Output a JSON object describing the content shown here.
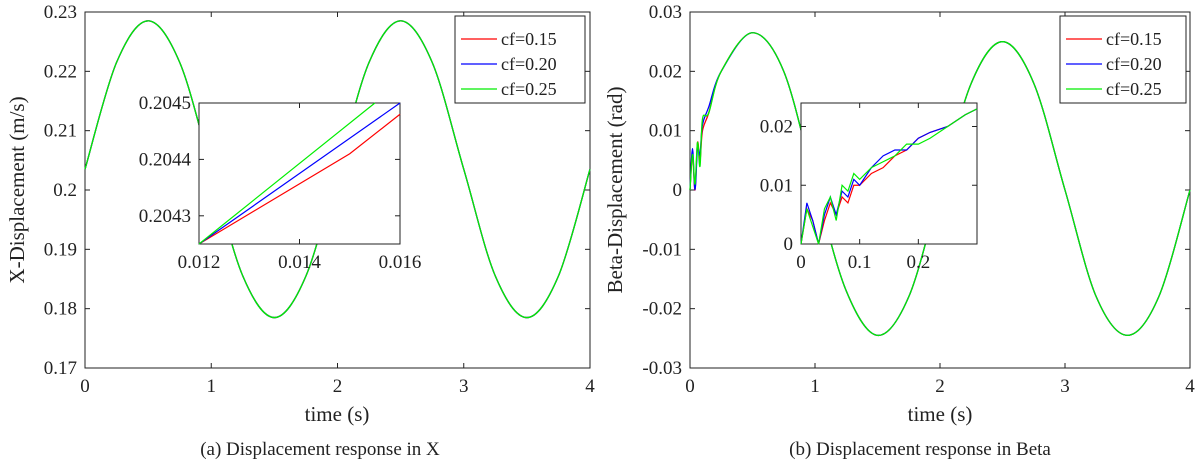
{
  "colors": {
    "cf015": "#ff0000",
    "cf020": "#0000ff",
    "cf025": "#00ee00"
  },
  "chart_data": [
    {
      "type": "line",
      "caption": "(a) Displacement response in X",
      "xlabel": "time (s)",
      "ylabel": "X-Displacement (m/s)",
      "xlim": [
        0,
        4
      ],
      "ylim": [
        0.17,
        0.23
      ],
      "xticks": [
        0,
        1,
        2,
        3,
        4
      ],
      "yticks": [
        0.17,
        0.18,
        0.19,
        0.2,
        0.21,
        0.22,
        0.23
      ],
      "xtick_labels": [
        "0",
        "1",
        "2",
        "3",
        "4"
      ],
      "ytick_labels": [
        "0.17",
        "0.18",
        "0.19",
        "0.2",
        "0.21",
        "0.22",
        "0.23"
      ],
      "legend_position": "top-right",
      "grid": false,
      "series": [
        {
          "name": "cf=0.15",
          "color": "#ff0000",
          "x": [
            0,
            0.25,
            0.5,
            0.75,
            1,
            1.25,
            1.5,
            1.75,
            2,
            2.25,
            2.5,
            2.75,
            3,
            3.25,
            3.5,
            3.75,
            4
          ],
          "y": [
            0.2035,
            0.2215,
            0.2285,
            0.2215,
            0.2035,
            0.1855,
            0.1785,
            0.1855,
            0.2035,
            0.2215,
            0.2285,
            0.2215,
            0.2035,
            0.1855,
            0.1785,
            0.1855,
            0.2035
          ]
        },
        {
          "name": "cf=0.20",
          "color": "#0000ff",
          "x": [
            0,
            0.25,
            0.5,
            0.75,
            1,
            1.25,
            1.5,
            1.75,
            2,
            2.25,
            2.5,
            2.75,
            3,
            3.25,
            3.5,
            3.75,
            4
          ],
          "y": [
            0.2035,
            0.2215,
            0.2285,
            0.2215,
            0.2035,
            0.1855,
            0.1785,
            0.1855,
            0.2035,
            0.2215,
            0.2285,
            0.2215,
            0.2035,
            0.1855,
            0.1785,
            0.1855,
            0.2035
          ]
        },
        {
          "name": "cf=0.25",
          "color": "#00ee00",
          "x": [
            0,
            0.25,
            0.5,
            0.75,
            1,
            1.25,
            1.5,
            1.75,
            2,
            2.25,
            2.5,
            2.75,
            3,
            3.25,
            3.5,
            3.75,
            4
          ],
          "y": [
            0.2035,
            0.2215,
            0.2285,
            0.2215,
            0.2035,
            0.1855,
            0.1785,
            0.1855,
            0.2035,
            0.2215,
            0.2285,
            0.2215,
            0.2035,
            0.1855,
            0.1785,
            0.1855,
            0.2035
          ]
        }
      ],
      "inset": {
        "xlim": [
          0.012,
          0.016
        ],
        "ylim": [
          0.20425,
          0.2045
        ],
        "xticks": [
          0.012,
          0.014,
          0.016
        ],
        "yticks": [
          0.2043,
          0.2044,
          0.2045
        ],
        "xtick_labels": [
          "0.012",
          "0.014",
          "0.016"
        ],
        "ytick_labels": [
          "0.2043",
          "0.2044",
          "0.2045"
        ],
        "series": [
          {
            "name": "cf=0.15",
            "color": "#ff0000",
            "x": [
              0.012,
              0.015,
              0.016
            ],
            "y": [
              0.20425,
              0.20441,
              0.20448
            ]
          },
          {
            "name": "cf=0.20",
            "color": "#0000ff",
            "x": [
              0.012,
              0.016
            ],
            "y": [
              0.20425,
              0.2045
            ]
          },
          {
            "name": "cf=0.25",
            "color": "#00ee00",
            "x": [
              0.012,
              0.0155
            ],
            "y": [
              0.20425,
              0.2045
            ]
          }
        ]
      }
    },
    {
      "type": "line",
      "caption": "(b) Displacement response in Beta",
      "xlabel": "time (s)",
      "ylabel": "Beta-Displacement (rad)",
      "xlim": [
        0,
        4
      ],
      "ylim": [
        -0.03,
        0.03
      ],
      "xticks": [
        0,
        1,
        2,
        3,
        4
      ],
      "yticks": [
        -0.03,
        -0.02,
        -0.01,
        0,
        0.01,
        0.02,
        0.03
      ],
      "xtick_labels": [
        "0",
        "1",
        "2",
        "3",
        "4"
      ],
      "ytick_labels": [
        "-0.03",
        "-0.02",
        "-0.01",
        "0",
        "0.01",
        "0.02",
        "0.03"
      ],
      "legend_position": "top-right",
      "grid": false,
      "series": [
        {
          "name": "cf=0.15",
          "color": "#ff0000",
          "x": [
            0,
            0.02,
            0.04,
            0.06,
            0.08,
            0.1,
            0.15,
            0.25,
            0.5,
            0.75,
            1,
            1.25,
            1.5,
            1.75,
            2,
            2.25,
            2.5,
            2.75,
            3,
            3.25,
            3.5,
            3.75,
            4
          ],
          "y": [
            0,
            0.006,
            0.0,
            0.008,
            0.005,
            0.01,
            0.013,
            0.02,
            0.0265,
            0.02,
            0.001,
            -0.017,
            -0.0245,
            -0.018,
            0,
            0.018,
            0.025,
            0.018,
            0,
            -0.018,
            -0.0245,
            -0.018,
            0
          ]
        },
        {
          "name": "cf=0.20",
          "color": "#0000ff",
          "x": [
            0,
            0.02,
            0.04,
            0.06,
            0.08,
            0.1,
            0.15,
            0.25,
            0.5,
            0.75,
            1,
            1.25,
            1.5,
            1.75,
            2,
            2.25,
            2.5,
            2.75,
            3,
            3.25,
            3.5,
            3.75,
            4
          ],
          "y": [
            0,
            0.007,
            0.0,
            0.007,
            0.006,
            0.011,
            0.014,
            0.02,
            0.0265,
            0.02,
            0.001,
            -0.017,
            -0.0245,
            -0.018,
            0,
            0.018,
            0.025,
            0.018,
            0,
            -0.018,
            -0.0245,
            -0.018,
            0
          ]
        },
        {
          "name": "cf=0.25",
          "color": "#00ee00",
          "x": [
            0,
            0.02,
            0.04,
            0.06,
            0.08,
            0.1,
            0.15,
            0.25,
            0.5,
            0.75,
            1,
            1.25,
            1.5,
            1.75,
            2,
            2.25,
            2.5,
            2.75,
            3,
            3.25,
            3.5,
            3.75,
            4
          ],
          "y": [
            0,
            0.006,
            0.001,
            0.008,
            0.004,
            0.012,
            0.013,
            0.02,
            0.0265,
            0.02,
            0.001,
            -0.017,
            -0.0245,
            -0.018,
            0,
            0.018,
            0.025,
            0.018,
            0,
            -0.018,
            -0.0245,
            -0.018,
            0
          ]
        }
      ],
      "inset": {
        "xlim": [
          0,
          0.3
        ],
        "ylim": [
          0,
          0.024
        ],
        "xticks": [
          0,
          0.1,
          0.2
        ],
        "yticks": [
          0,
          0.01,
          0.02
        ],
        "xtick_labels": [
          "0",
          "0.1",
          "0.2"
        ],
        "ytick_labels": [
          "0",
          "0.01",
          "0.02"
        ],
        "series": [
          {
            "name": "cf=0.15",
            "color": "#ff0000",
            "x": [
              0,
              0.01,
              0.02,
              0.03,
              0.04,
              0.05,
              0.06,
              0.07,
              0.08,
              0.09,
              0.1,
              0.12,
              0.14,
              0.16,
              0.18,
              0.2,
              0.22,
              0.25,
              0.28,
              0.3
            ],
            "y": [
              0,
              0.006,
              0.004,
              0,
              0.004,
              0.007,
              0.005,
              0.008,
              0.007,
              0.01,
              0.01,
              0.012,
              0.013,
              0.015,
              0.016,
              0.018,
              0.019,
              0.02,
              0.022,
              0.023
            ]
          },
          {
            "name": "cf=0.20",
            "color": "#0000ff",
            "x": [
              0,
              0.01,
              0.02,
              0.03,
              0.04,
              0.05,
              0.06,
              0.07,
              0.08,
              0.09,
              0.1,
              0.12,
              0.14,
              0.16,
              0.18,
              0.2,
              0.22,
              0.25,
              0.28,
              0.3
            ],
            "y": [
              0,
              0.007,
              0.004,
              0,
              0.005,
              0.008,
              0.005,
              0.009,
              0.008,
              0.011,
              0.01,
              0.013,
              0.015,
              0.016,
              0.016,
              0.018,
              0.019,
              0.02,
              0.022,
              0.023
            ]
          },
          {
            "name": "cf=0.25",
            "color": "#00ee00",
            "x": [
              0,
              0.01,
              0.02,
              0.03,
              0.04,
              0.05,
              0.06,
              0.07,
              0.08,
              0.09,
              0.1,
              0.12,
              0.14,
              0.16,
              0.18,
              0.2,
              0.22,
              0.25,
              0.28,
              0.3
            ],
            "y": [
              0,
              0.006,
              0.003,
              0,
              0.006,
              0.008,
              0.004,
              0.01,
              0.009,
              0.012,
              0.011,
              0.013,
              0.014,
              0.015,
              0.017,
              0.017,
              0.018,
              0.02,
              0.022,
              0.023
            ]
          }
        ]
      }
    }
  ]
}
